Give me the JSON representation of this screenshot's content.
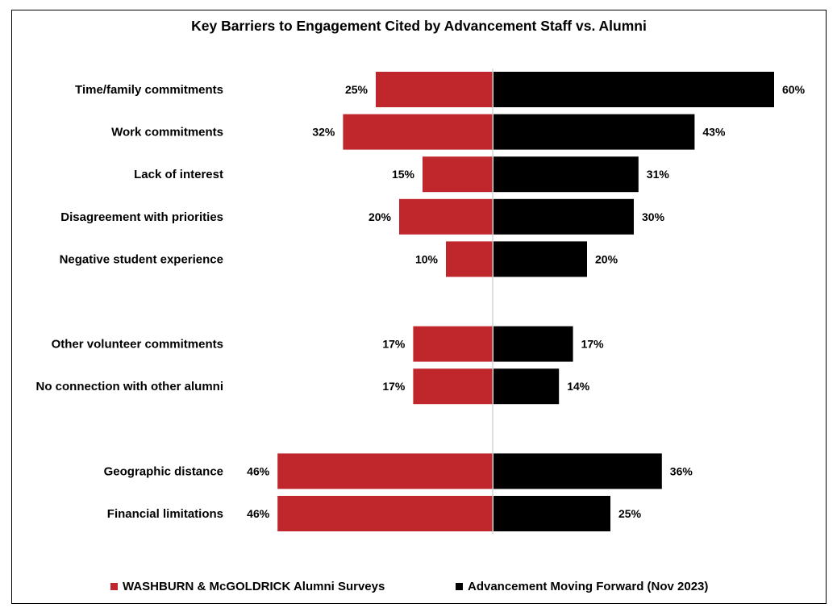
{
  "chart_data": {
    "type": "bar",
    "orientation": "horizontal-diverging",
    "title": "Key Barriers to Engagement Cited by Advancement Staff vs. Alumni",
    "categories": [
      "Time/family commitments",
      "Work commitments",
      "Lack of interest",
      "Disagreement with priorities",
      "Negative student experience",
      "",
      "Other volunteer commitments",
      "No connection with other alumni",
      "",
      "Geographic distance",
      "Financial limitations"
    ],
    "series": [
      {
        "name": "WASHBURN & McGOLDRICK Alumni Surveys",
        "color": "#c0272d",
        "side": "left",
        "values": [
          25,
          32,
          15,
          20,
          10,
          null,
          17,
          17,
          null,
          46,
          46
        ]
      },
      {
        "name": "Advancement Moving Forward (Nov 2023)",
        "color": "#000000",
        "side": "right",
        "values": [
          60,
          43,
          31,
          30,
          20,
          null,
          17,
          14,
          null,
          36,
          25
        ]
      }
    ],
    "value_suffix": "%",
    "legend_position": "bottom",
    "grid": false
  }
}
